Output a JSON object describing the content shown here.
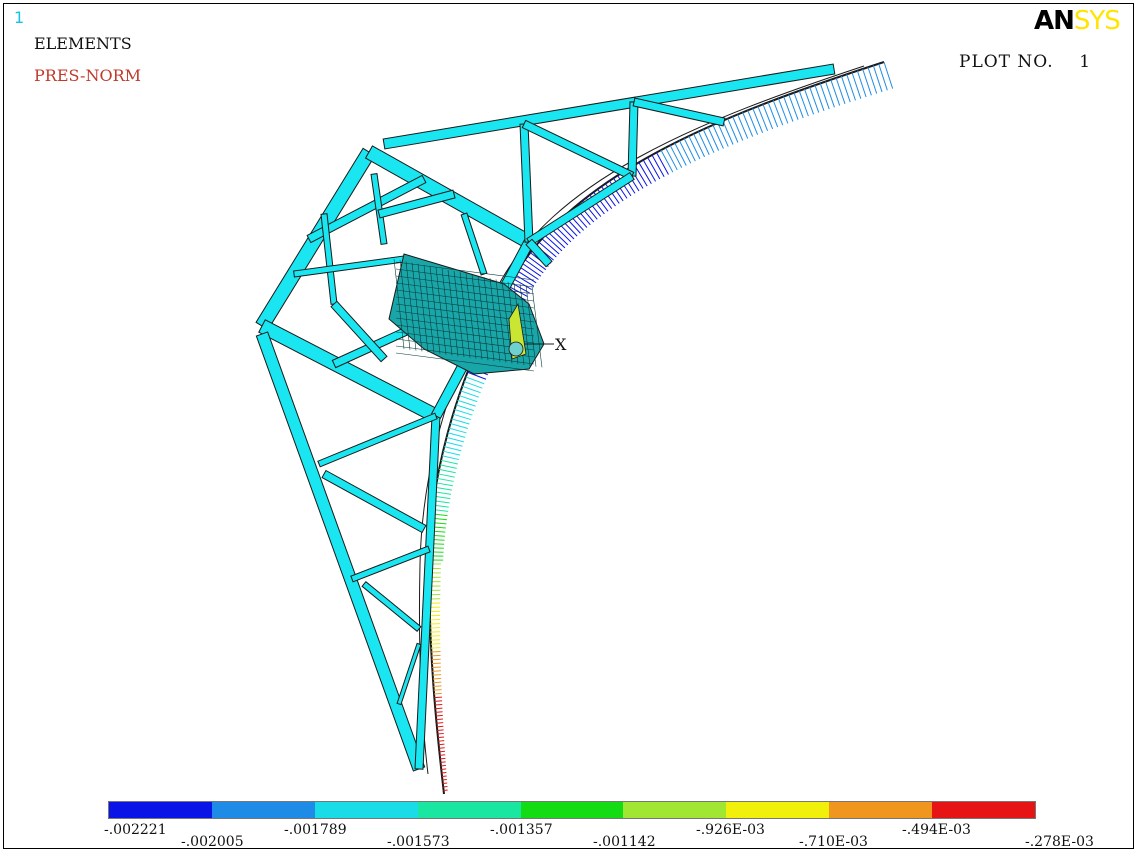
{
  "window_number": "1",
  "labels": {
    "elements": "ELEMENTS",
    "pressure": "PRES-NORM",
    "plot": "PLOT NO.    1"
  },
  "brand": {
    "part1": "AN",
    "part2": "SYS"
  },
  "axis_label": "X",
  "legend": {
    "colors": [
      "#0a14e6",
      "#1e8ce6",
      "#19dce6",
      "#19e6a0",
      "#14dc14",
      "#a0e632",
      "#f0f00a",
      "#f0961e",
      "#e61414"
    ],
    "ticks": [
      "-.002221",
      "-.002005",
      "-.001789",
      "-.001573",
      "-.001357",
      "-.001142",
      "-.926E-03",
      "-.710E-03",
      "-.494E-03",
      "-.278E-03"
    ]
  },
  "colors": {
    "element": "#19e6f0",
    "outline": "#1a1a1a"
  }
}
